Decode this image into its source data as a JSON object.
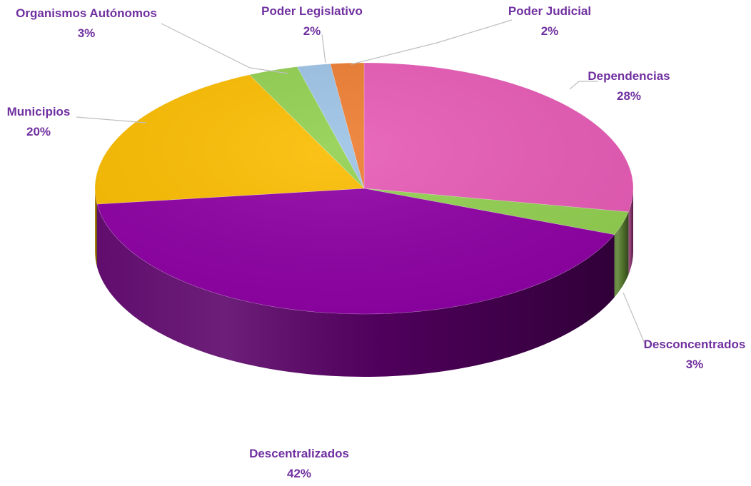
{
  "chart_data": {
    "type": "pie",
    "variant": "3d",
    "title": "",
    "unit": "%",
    "slices": [
      {
        "label": "Dependencias",
        "value": 28,
        "color": "#e75bb6"
      },
      {
        "label": "Desconcentrados",
        "value": 3,
        "color": "#92d050"
      },
      {
        "label": "Descentralizados",
        "value": 42,
        "color": "#8e00a4"
      },
      {
        "label": "Municipios",
        "value": 20,
        "color": "#fbbd00"
      },
      {
        "label": "Organismos Autónomos",
        "value": 3,
        "color": "#92d050"
      },
      {
        "label": "Poder Legislativo",
        "value": 2,
        "color": "#9dc3e6"
      },
      {
        "label": "Poder Judicial",
        "value": 2,
        "color": "#ed7d31"
      }
    ],
    "legend": "none",
    "data_labels": "outside with leader lines"
  }
}
